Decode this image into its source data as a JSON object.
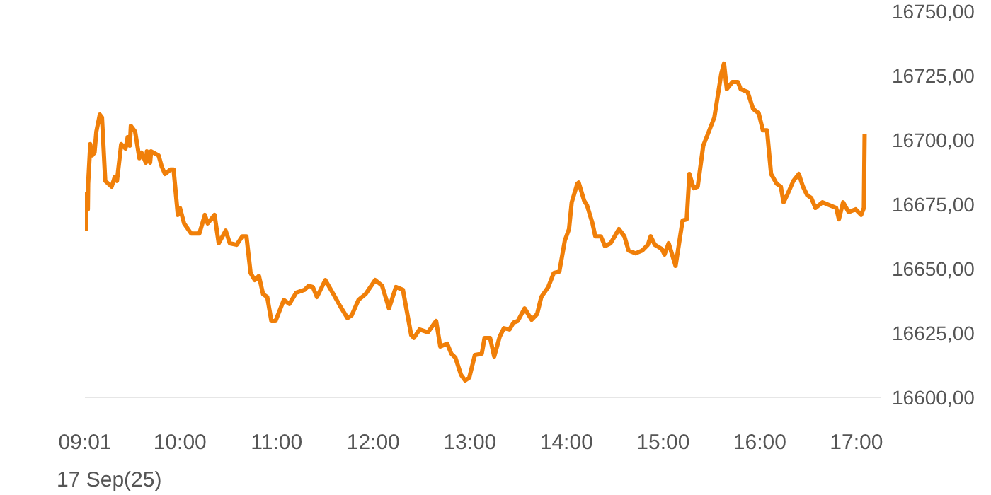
{
  "chart_data": {
    "type": "line",
    "xlabel": "17 Sep(25)",
    "grid": false,
    "legend": false,
    "marker": "none",
    "line_style": "solid",
    "xlim": [
      9.0167,
      17.25
    ],
    "xticks": [
      {
        "value": 9.0167,
        "label": "09:01"
      },
      {
        "value": 10,
        "label": "10:00"
      },
      {
        "value": 11,
        "label": "11:00"
      },
      {
        "value": 12,
        "label": "12:00"
      },
      {
        "value": 13,
        "label": "13:00"
      },
      {
        "value": 14,
        "label": "14:00"
      },
      {
        "value": 15,
        "label": "15:00"
      },
      {
        "value": 16,
        "label": "16:00"
      },
      {
        "value": 17,
        "label": "17:00"
      }
    ],
    "ylim": [
      16600,
      16750
    ],
    "yticks": [
      {
        "value": 16600,
        "label": "16600,00"
      },
      {
        "value": 16625,
        "label": "16625,00"
      },
      {
        "value": 16650,
        "label": "16650,00"
      },
      {
        "value": 16675,
        "label": "16675,00"
      },
      {
        "value": 16700,
        "label": "16700,00"
      },
      {
        "value": 16725,
        "label": "16725,00"
      },
      {
        "value": 16750,
        "label": "16750,00"
      }
    ],
    "x": [
      9.028,
      9.035,
      9.047,
      9.05,
      9.072,
      9.091,
      9.116,
      9.135,
      9.171,
      9.193,
      9.227,
      9.293,
      9.326,
      9.348,
      9.392,
      9.437,
      9.459,
      9.481,
      9.492,
      9.536,
      9.58,
      9.602,
      9.647,
      9.658,
      9.691,
      9.702,
      9.779,
      9.812,
      9.845,
      9.901,
      9.934,
      9.978,
      10.0,
      10.043,
      10.115,
      10.201,
      10.258,
      10.287,
      10.358,
      10.401,
      10.473,
      10.516,
      10.587,
      10.645,
      10.688,
      10.731,
      10.774,
      10.817,
      10.86,
      10.903,
      10.946,
      10.989,
      11.075,
      11.132,
      11.203,
      11.289,
      11.332,
      11.375,
      11.418,
      11.504,
      11.562,
      11.662,
      11.734,
      11.777,
      11.848,
      11.92,
      12.02,
      12.092,
      12.163,
      12.192,
      12.235,
      12.307,
      12.393,
      12.421,
      12.479,
      12.565,
      12.651,
      12.694,
      12.765,
      12.808,
      12.851,
      12.908,
      12.951,
      12.994,
      13.052,
      13.123,
      13.152,
      13.209,
      13.252,
      13.309,
      13.352,
      13.41,
      13.453,
      13.496,
      13.567,
      13.639,
      13.696,
      13.739,
      13.811,
      13.868,
      13.926,
      13.983,
      14.026,
      14.054,
      14.112,
      14.126,
      14.183,
      14.212,
      14.269,
      14.298,
      14.355,
      14.398,
      14.456,
      14.499,
      14.542,
      14.599,
      14.642,
      14.714,
      14.785,
      14.842,
      14.871,
      14.914,
      14.986,
      15.014,
      15.057,
      15.129,
      15.201,
      15.244,
      15.272,
      15.315,
      15.358,
      15.415,
      15.473,
      15.53,
      15.602,
      15.63,
      15.659,
      15.716,
      15.774,
      15.802,
      15.874,
      15.931,
      15.989,
      16.032,
      16.075,
      16.117,
      16.175,
      16.218,
      16.246,
      16.289,
      16.347,
      16.404,
      16.447,
      16.49,
      16.533,
      16.576,
      16.648,
      16.719,
      16.791,
      16.819,
      16.862,
      16.92,
      16.991,
      17.049,
      17.077,
      17.085
    ],
    "series": [
      {
        "color": "#f07f09",
        "values": [
          16664.8,
          16679.1,
          16673.1,
          16683.0,
          16698.4,
          16694.0,
          16695.1,
          16703.3,
          16709.9,
          16708.8,
          16684.1,
          16681.9,
          16685.7,
          16684.1,
          16698.4,
          16696.7,
          16701.1,
          16697.8,
          16705.5,
          16703.3,
          16692.9,
          16695.1,
          16691.2,
          16695.6,
          16691.2,
          16695.6,
          16694.0,
          16689.6,
          16686.8,
          16688.5,
          16688.5,
          16670.9,
          16673.6,
          16667.6,
          16663.7,
          16663.7,
          16670.9,
          16667.6,
          16670.9,
          16659.9,
          16664.8,
          16659.9,
          16659.3,
          16662.6,
          16662.6,
          16648.3,
          16645.6,
          16647.2,
          16640.1,
          16639.0,
          16629.7,
          16629.7,
          16637.9,
          16636.3,
          16640.7,
          16641.8,
          16643.4,
          16642.9,
          16639.0,
          16645.6,
          16641.8,
          16635.2,
          16630.8,
          16631.9,
          16637.9,
          16640.1,
          16645.6,
          16643.4,
          16634.6,
          16637.9,
          16642.9,
          16641.8,
          16624.2,
          16623.1,
          16626.4,
          16625.3,
          16629.7,
          16619.8,
          16620.9,
          16617.0,
          16615.4,
          16608.8,
          16606.6,
          16607.7,
          16616.5,
          16617.0,
          16623.1,
          16623.1,
          16615.9,
          16623.6,
          16626.9,
          16626.4,
          16629.1,
          16629.7,
          16634.6,
          16630.2,
          16632.4,
          16639.0,
          16642.9,
          16648.3,
          16648.9,
          16661.0,
          16665.4,
          16675.8,
          16683.0,
          16683.5,
          16676.4,
          16674.7,
          16667.6,
          16662.6,
          16662.6,
          16658.8,
          16659.9,
          16662.6,
          16665.4,
          16662.6,
          16657.1,
          16656.0,
          16657.1,
          16659.3,
          16662.6,
          16659.3,
          16657.7,
          16655.5,
          16659.9,
          16651.1,
          16668.7,
          16669.2,
          16686.8,
          16681.3,
          16681.9,
          16697.8,
          16703.3,
          16708.8,
          16725.8,
          16729.7,
          16719.8,
          16722.5,
          16722.5,
          16719.8,
          16718.7,
          16712.1,
          16710.4,
          16703.8,
          16703.8,
          16686.8,
          16683.0,
          16681.9,
          16675.8,
          16679.1,
          16684.1,
          16686.8,
          16681.9,
          16678.6,
          16677.5,
          16673.6,
          16675.8,
          16674.7,
          16673.6,
          16669.2,
          16675.8,
          16672.0,
          16673.1,
          16670.9,
          16673.6,
          16702.2
        ]
      }
    ]
  }
}
